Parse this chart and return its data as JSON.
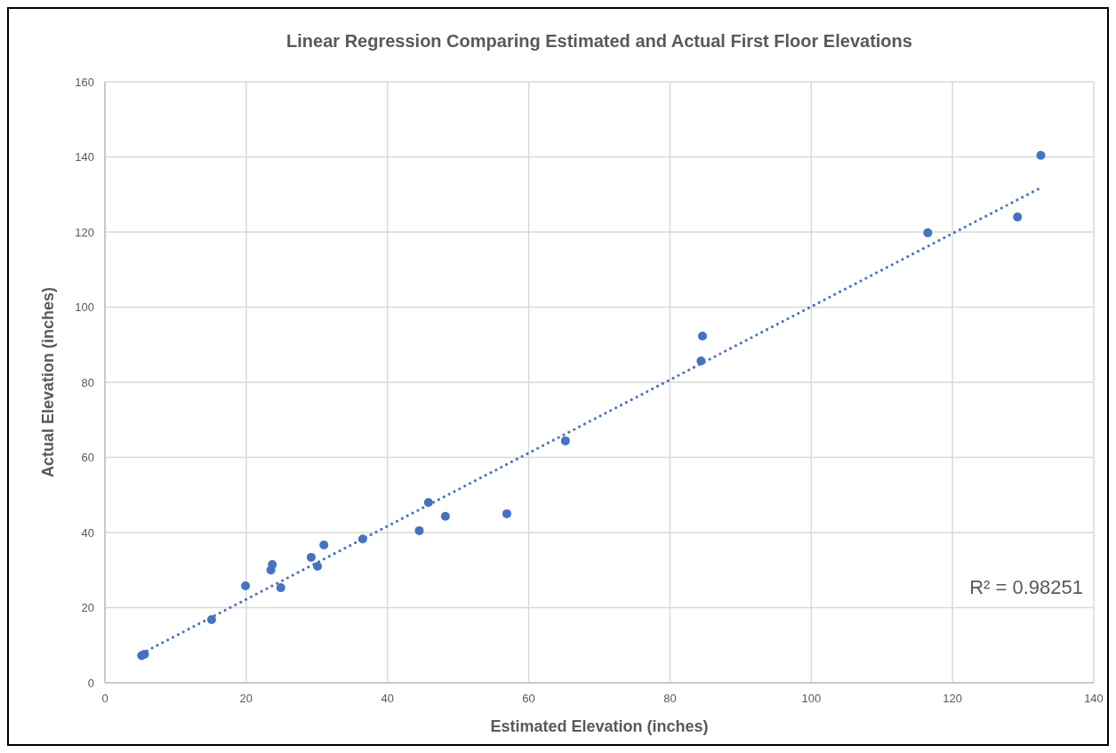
{
  "chart_data": {
    "type": "scatter",
    "title": "Linear Regression Comparing Estimated and Actual First Floor Elevations",
    "xlabel": "Estimated Elevation (inches)",
    "ylabel": "Actual Elevation (inches)",
    "xlim": [
      0,
      140
    ],
    "xticks": [
      0,
      20,
      40,
      60,
      80,
      100,
      120,
      140
    ],
    "ylim": [
      0,
      160
    ],
    "yticks": [
      0,
      20,
      40,
      60,
      80,
      100,
      120,
      140,
      160
    ],
    "grid": true,
    "series": [
      {
        "type": "scatter",
        "marker": "circle",
        "color": "#4472c4",
        "x": [
          5.2,
          5.6,
          15.1,
          19.9,
          23.5,
          23.7,
          24.9,
          29.2,
          30.1,
          31.0,
          36.5,
          44.5,
          45.8,
          48.2,
          56.9,
          65.2,
          84.4,
          84.6,
          116.5,
          129.2,
          132.5
        ],
        "values": [
          7.2,
          7.6,
          16.8,
          25.8,
          30.0,
          31.5,
          25.3,
          33.4,
          31.0,
          36.7,
          38.3,
          40.5,
          48.0,
          44.3,
          45.0,
          64.4,
          85.7,
          92.3,
          119.8,
          124.0,
          140.4
        ]
      },
      {
        "type": "line",
        "color": "#4472c4",
        "line_style": "dotted",
        "x": [
          5.2,
          132.5
        ],
        "values": [
          7.8,
          131.8
        ]
      }
    ],
    "annotations": [
      "R² = 0.98251"
    ]
  }
}
